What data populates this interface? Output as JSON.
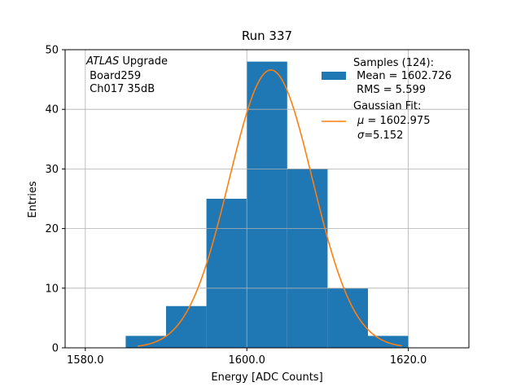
{
  "chart_data": {
    "type": "bar",
    "title": "Run 337",
    "xlabel": "Energy [ADC Counts]",
    "ylabel": "Entries",
    "xlim": [
      1577.5,
      1627.5
    ],
    "ylim": [
      0,
      50
    ],
    "xticks": [
      1580,
      1600,
      1620
    ],
    "xtick_labels": [
      "1580.0",
      "1600.0",
      "1620.0"
    ],
    "yticks": [
      0,
      10,
      20,
      30,
      40,
      50
    ],
    "ytick_labels": [
      "0",
      "10",
      "20",
      "30",
      "40",
      "50"
    ],
    "grid": true,
    "histogram": {
      "bin_edges": [
        1585,
        1590,
        1595,
        1600,
        1605,
        1610,
        1615,
        1620
      ],
      "counts": [
        2,
        7,
        25,
        48,
        30,
        10,
        2
      ],
      "color": "#1f77b4"
    },
    "fit": {
      "mu": 1602.975,
      "sigma": 5.152,
      "x_range": [
        1586.5,
        1619.2
      ],
      "peak": 46.6,
      "color": "#ff7f0e"
    },
    "annotation": {
      "italic": "ATLAS",
      "line1_rest": " Upgrade",
      "line2": " Board259",
      "line3": " Ch017 35dB"
    },
    "legend": {
      "position": "top-right",
      "samples": {
        "line1": "Samples (124):",
        "line2": " Mean = 1602.726",
        "line3": " RMS = 5.599"
      },
      "fit": {
        "line1": "Gaussian Fit:",
        "line2_mu": "μ",
        "line2_rest": " = 1602.975",
        "line3_sigma": "σ",
        "line3_rest": "=5.152"
      }
    }
  }
}
